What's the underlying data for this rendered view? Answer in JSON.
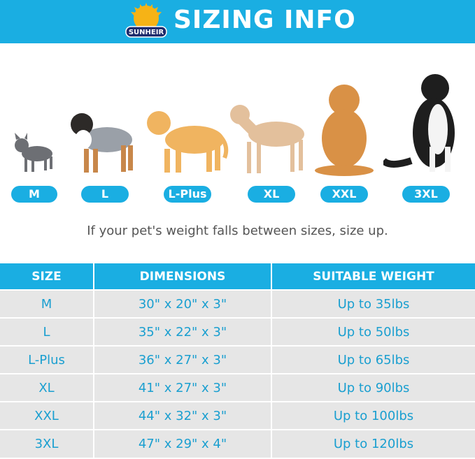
{
  "header": {
    "title": "SIZING INFO",
    "logo_text": "SUNHEIR"
  },
  "sizes": [
    "M",
    "L",
    "L-Plus",
    "XL",
    "XXL",
    "3XL"
  ],
  "note": "If your pet's weight falls between sizes, size up.",
  "table": {
    "headers": [
      "SIZE",
      "DIMENSIONS",
      "SUITABLE WEIGHT"
    ],
    "rows": [
      [
        "M",
        "30\" x 20\" x 3\"",
        "Up to 35lbs"
      ],
      [
        "L",
        "35\" x 22\" x 3\"",
        "Up to 50lbs"
      ],
      [
        "L-Plus",
        "36\" x 27\" x 3\"",
        "Up to 65lbs"
      ],
      [
        "XL",
        "41\" x 27\" x 3\"",
        "Up to 90lbs"
      ],
      [
        "XXL",
        "44\" x 32\" x 3\"",
        "Up to 100lbs"
      ],
      [
        "3XL",
        "47\" x 29\" x 4\"",
        "Up to 120lbs"
      ]
    ]
  },
  "colors": {
    "accent": "#1aaee2",
    "row_bg": "#e6e6e6",
    "cell_text": "#1a9fd0"
  }
}
